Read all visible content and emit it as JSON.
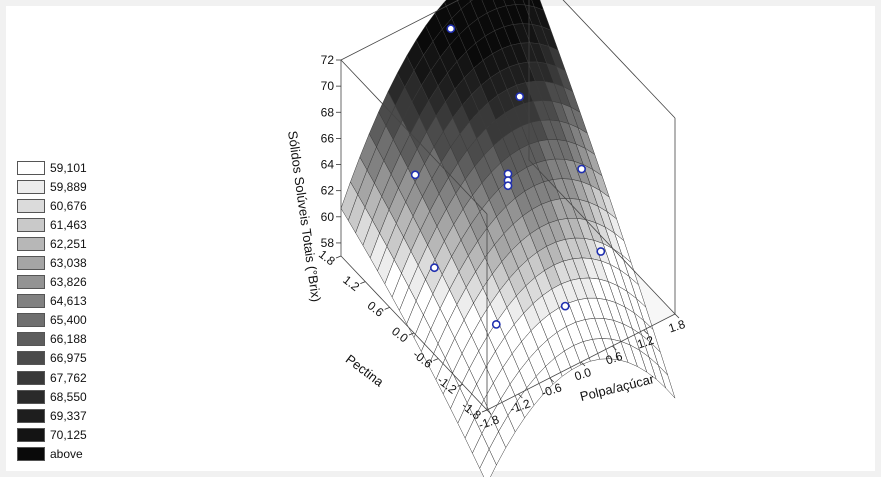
{
  "chart_data": {
    "type": "surface3d",
    "title": "",
    "zlabel": "Sólidos Solúveis Totais (°Brix)",
    "xlabel": "Polpa/açúcar",
    "ylabel": "Pectina",
    "xlim": [
      -1.8,
      1.8
    ],
    "ylim": [
      -1.8,
      1.8
    ],
    "zlim": [
      57,
      72
    ],
    "x_ticks": [
      "-1.8",
      "-1.2",
      "-0.6",
      "0.0",
      "0.6",
      "1.2",
      "1.8"
    ],
    "y_ticks": [
      "-1.8",
      "-1.2",
      "-0.6",
      "0.0",
      "0.6",
      "1.2",
      "1.8"
    ],
    "z_ticks": [
      "58",
      "60",
      "62",
      "64",
      "66",
      "68",
      "70",
      "72"
    ],
    "legend": {
      "labels": [
        "59,101",
        "59,889",
        "60,676",
        "61,463",
        "62,251",
        "63,038",
        "63,826",
        "64,613",
        "65,400",
        "66,188",
        "66,975",
        "67,762",
        "68,550",
        "69,337",
        "70,125",
        "above"
      ],
      "colors": [
        "#ffffff",
        "#ededed",
        "#dbdbdb",
        "#c9c9c9",
        "#b7b7b7",
        "#a5a5a5",
        "#939393",
        "#818181",
        "#6f6f6f",
        "#5d5d5d",
        "#4b4b4b",
        "#393939",
        "#2a2a2a",
        "#1e1e1e",
        "#141414",
        "#0a0a0a"
      ],
      "placement": "left"
    },
    "points": [
      {
        "x": -1.0,
        "y": 1.0,
        "z": 64.2
      },
      {
        "x": 1.0,
        "y": -1.0,
        "z": 60.8
      },
      {
        "x": -1.0,
        "y": -1.0,
        "z": 59.3
      },
      {
        "x": 1.0,
        "y": 1.0,
        "z": 66.1
      },
      {
        "x": -1.41,
        "y": 0.0,
        "z": 61.2
      },
      {
        "x": 1.41,
        "y": 0.0,
        "z": 63.0
      },
      {
        "x": 0.0,
        "y": -1.41,
        "z": 60.0
      },
      {
        "x": 0.0,
        "y": 1.41,
        "z": 72.0
      },
      {
        "x": 0.0,
        "y": 0.0,
        "z": 65.5
      },
      {
        "x": 0.0,
        "y": 0.0,
        "z": 65.0
      },
      {
        "x": 0.0,
        "y": 0.0,
        "z": 64.6
      }
    ]
  }
}
